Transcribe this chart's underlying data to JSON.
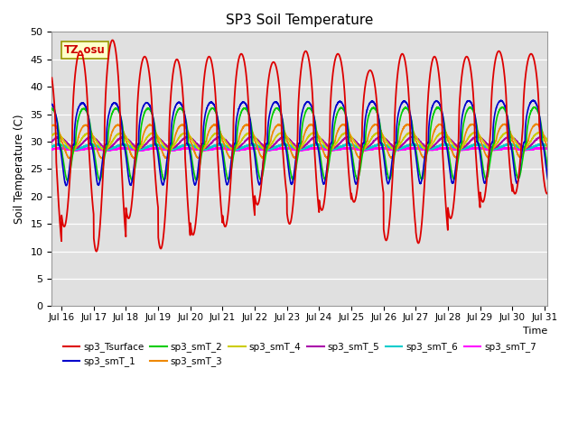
{
  "title": "SP3 Soil Temperature",
  "ylabel": "Soil Temperature (C)",
  "xlabel": "Time",
  "annotation": "TZ_osu",
  "background_color": "#e0e0e0",
  "fig_background": "#ffffff",
  "ylim": [
    0,
    50
  ],
  "yticks": [
    0,
    5,
    10,
    15,
    20,
    25,
    30,
    35,
    40,
    45,
    50
  ],
  "x_start_day": 15.7,
  "x_end_day": 31.1,
  "num_points": 5000,
  "series": [
    {
      "label": "sp3_Tsurface",
      "color": "#dd0000",
      "linewidth": 1.3,
      "amplitude": 19.0,
      "mean": 29.0,
      "phase_hour": 14.0,
      "sharpness": 4.0
    },
    {
      "label": "sp3_smT_1",
      "color": "#0000cc",
      "linewidth": 1.2,
      "amplitude": 7.5,
      "mean": 29.5,
      "phase_hour": 15.5,
      "sharpness": 2.5
    },
    {
      "label": "sp3_smT_2",
      "color": "#00cc00",
      "linewidth": 1.2,
      "amplitude": 6.5,
      "mean": 29.5,
      "phase_hour": 16.5,
      "sharpness": 2.0
    },
    {
      "label": "sp3_smT_3",
      "color": "#ee8800",
      "linewidth": 1.2,
      "amplitude": 3.0,
      "mean": 30.0,
      "phase_hour": 18.0,
      "sharpness": 1.5
    },
    {
      "label": "sp3_smT_4",
      "color": "#cccc00",
      "linewidth": 1.2,
      "amplitude": 1.5,
      "mean": 30.0,
      "phase_hour": 20.0,
      "sharpness": 1.2
    },
    {
      "label": "sp3_smT_5",
      "color": "#aa00aa",
      "linewidth": 1.2,
      "amplitude": 1.0,
      "mean": 29.8,
      "phase_hour": 22.0,
      "sharpness": 1.0
    },
    {
      "label": "sp3_smT_6",
      "color": "#00cccc",
      "linewidth": 1.5,
      "amplitude": 0.4,
      "mean": 29.0,
      "phase_hour": 22.0,
      "sharpness": 1.0
    },
    {
      "label": "sp3_smT_7",
      "color": "#ff00ff",
      "linewidth": 1.5,
      "amplitude": 0.15,
      "mean": 28.6,
      "phase_hour": 22.0,
      "sharpness": 1.0
    }
  ],
  "xtick_labels": [
    "Jul 16",
    "Jul 17",
    "Jul 18",
    "Jul 19",
    "Jul 20",
    "Jul 21",
    "Jul 22",
    "Jul 23",
    "Jul 24",
    "Jul 25",
    "Jul 26",
    "Jul 27",
    "Jul 28",
    "Jul 29",
    "Jul 30",
    "Jul 31"
  ],
  "xtick_positions": [
    16,
    17,
    18,
    19,
    20,
    21,
    22,
    23,
    24,
    25,
    26,
    27,
    28,
    29,
    30,
    31
  ],
  "trough_variation": [
    9.5,
    14.5,
    10.0,
    16.0,
    10.5,
    13.0,
    14.5,
    18.5,
    15.0,
    17.5,
    19.0,
    12.0,
    11.5,
    16.0,
    19.0,
    20.5
  ],
  "peak_variation": [
    44.0,
    46.5,
    48.5,
    45.5,
    45.0,
    45.5,
    46.0,
    44.5,
    46.5,
    46.0,
    43.0,
    46.0,
    45.5,
    45.5,
    46.5,
    46.0
  ]
}
